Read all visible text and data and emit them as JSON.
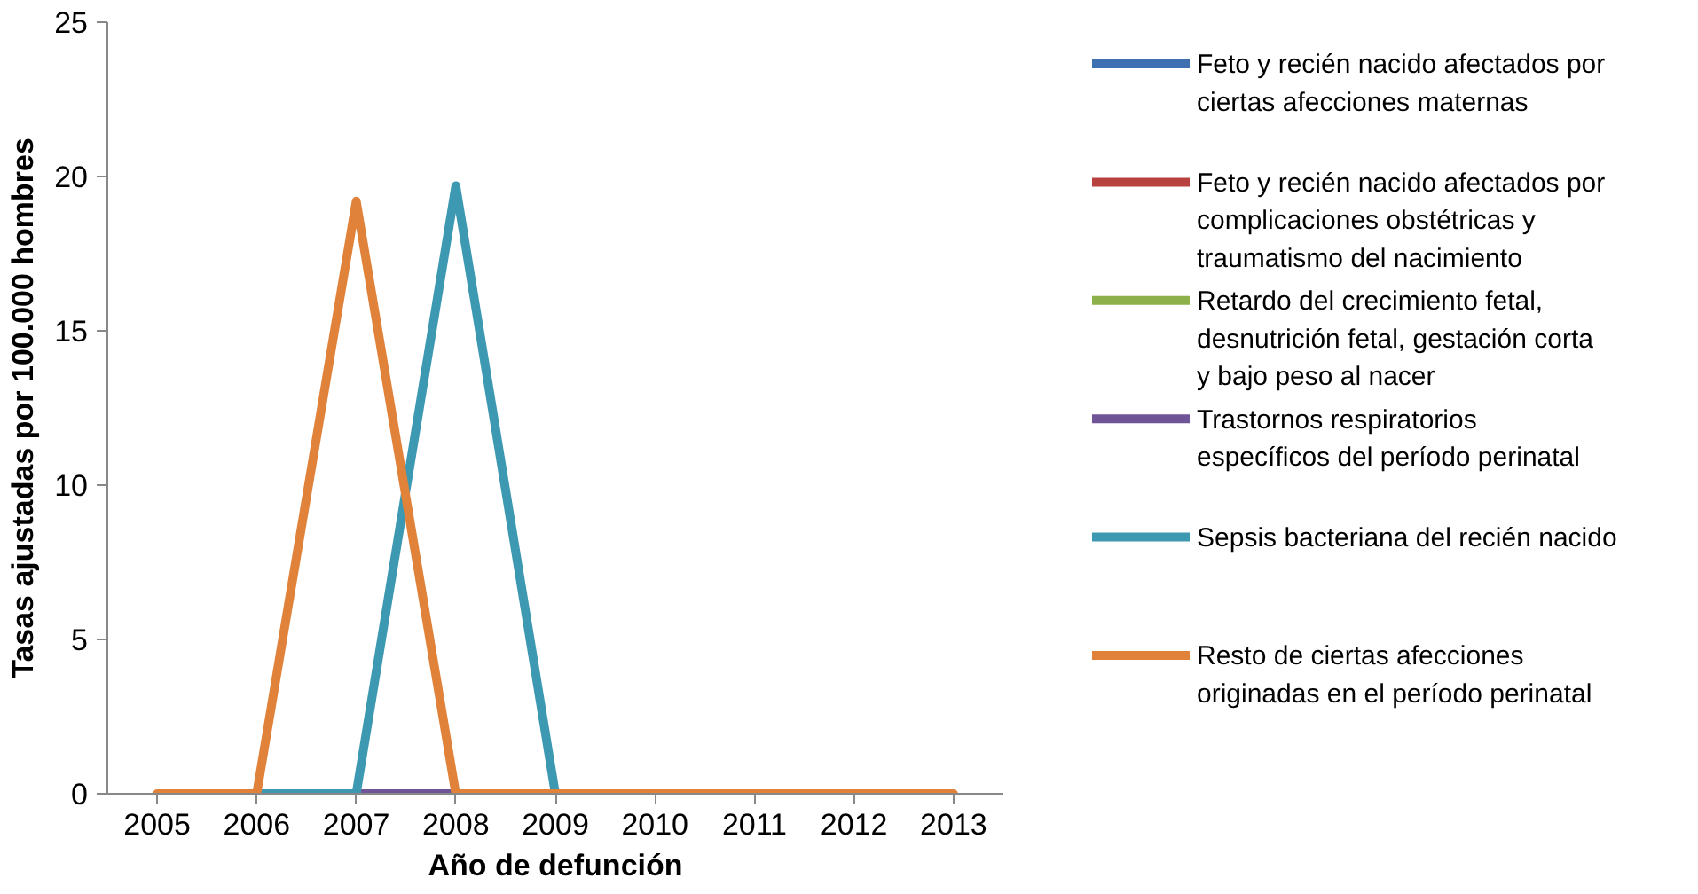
{
  "chart_data": {
    "type": "line",
    "xlabel": "Año de defunción",
    "ylabel": "Tasas ajustadas por 100.000 hombres",
    "categories": [
      "2005",
      "2006",
      "2007",
      "2008",
      "2009",
      "2010",
      "2011",
      "2012",
      "2013"
    ],
    "ylim": [
      0,
      25
    ],
    "yticks": [
      0,
      5,
      10,
      15,
      20,
      25
    ],
    "grid": false,
    "legend": "right",
    "marker": "none",
    "line_style": "solid",
    "series": [
      {
        "name": "Feto y recién nacido afectados por ciertas afecciones maternas",
        "color": "#3e6fb0",
        "values": [
          null,
          null,
          null,
          null,
          null,
          null,
          null,
          null,
          null
        ]
      },
      {
        "name": "Feto y recién nacido afectados por complicaciones obstétricas y traumatismo del nacimiento",
        "color": "#b7413e",
        "values": [
          null,
          null,
          null,
          null,
          null,
          null,
          null,
          null,
          null
        ]
      },
      {
        "name": "Retardo del crecimiento fetal, desnutrición fetal, gestación corta y bajo peso al nacer",
        "color": "#8eb04a",
        "values": [
          null,
          null,
          null,
          null,
          null,
          null,
          null,
          null,
          null
        ]
      },
      {
        "name": "Trastornos respiratorios específicos del período perinatal",
        "color": "#6f5597",
        "values": [
          null,
          null,
          0,
          0,
          null,
          null,
          null,
          null,
          null
        ]
      },
      {
        "name": "Sepsis bacteriana del recién nacido",
        "color": "#3d98b2",
        "values": [
          null,
          0,
          0,
          19.7,
          0,
          null,
          null,
          null,
          null
        ]
      },
      {
        "name": "Resto de ciertas afecciones originadas en el período perinatal",
        "color": "#e0823a",
        "values": [
          0,
          0,
          19.2,
          0,
          0,
          0,
          0,
          0,
          0
        ]
      }
    ]
  }
}
